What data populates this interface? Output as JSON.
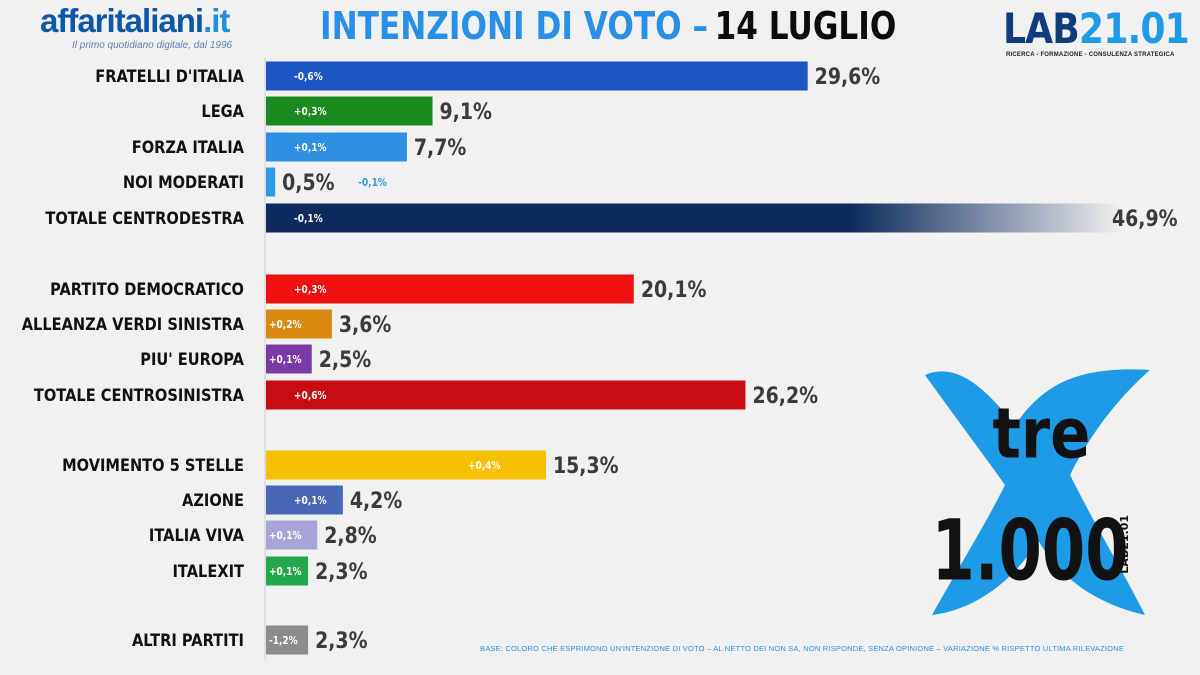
{
  "header": {
    "logo_main": "affaritaliani",
    "logo_tld": "it",
    "logo_tagline": "Il primo quotidiano digitale, dal 1996",
    "title_main": "INTENZIONI DI VOTO –",
    "title_date": "14 LUGLIO",
    "lab_logo_a": "LAB",
    "lab_logo_b": "21.01",
    "lab_tagline": "RICERCA - FORMAZIONE - CONSULENZA STRATEGICA"
  },
  "chart_data": {
    "type": "bar",
    "orientation": "horizontal",
    "categories": [
      "FRATELLI D'ITALIA",
      "LEGA",
      "FORZA ITALIA",
      "NOI MODERATI",
      "TOTALE CENTRODESTRA",
      "PARTITO DEMOCRATICO",
      "ALLEANZA VERDI SINISTRA",
      "PIU' EUROPA",
      "TOTALE CENTROSINISTRA",
      "MOVIMENTO 5 STELLE",
      "AZIONE",
      "ITALIA VIVA",
      "ITALEXIT",
      "ALTRI PARTITI"
    ],
    "values": [
      29.6,
      9.1,
      7.7,
      0.5,
      46.9,
      20.1,
      3.6,
      2.5,
      26.2,
      15.3,
      4.2,
      2.8,
      2.3,
      2.3
    ],
    "value_labels": [
      "29,6%",
      "9,1%",
      "7,7%",
      "0,5%",
      "46,9%",
      "20,1%",
      "3,6%",
      "2,5%",
      "26,2%",
      "15,3%",
      "4,2%",
      "2,8%",
      "2,3%",
      "2,3%"
    ],
    "changes": [
      "-0,6%",
      "+0,3%",
      "+0,1%",
      "-0,1%",
      "-0,1%",
      "+0,3%",
      "+0,2%",
      "+0,1%",
      "+0,6%",
      "+0,4%",
      "+0,1%",
      "+0,1%",
      "+0,1%",
      "-1,2%"
    ],
    "colors": [
      "#1c55c4",
      "#1b8a1e",
      "#2f8fe3",
      "#2f9ae6",
      "#0c2a5c",
      "#f01010",
      "#d98a10",
      "#7a3aa6",
      "#c70c12",
      "#f7c000",
      "#4a67b5",
      "#a7a4d6",
      "#22a84a",
      "#8c8c8c"
    ],
    "xlim": [
      0,
      47
    ],
    "grid": false
  },
  "footnote": "BASE: COLORO CHE ESPRIMONO UN'INTENZIONE DI VOTO – AL NETTO DEI NON SA, NON RISPONDE, SENZA OPINIONE – VARIAZIONE % RISPETTO ULTIMA RILEVAZIONE",
  "badge": {
    "word": "tre",
    "number": "1.000",
    "side_text": "LAB21.01",
    "color": "#1e9ae6"
  }
}
